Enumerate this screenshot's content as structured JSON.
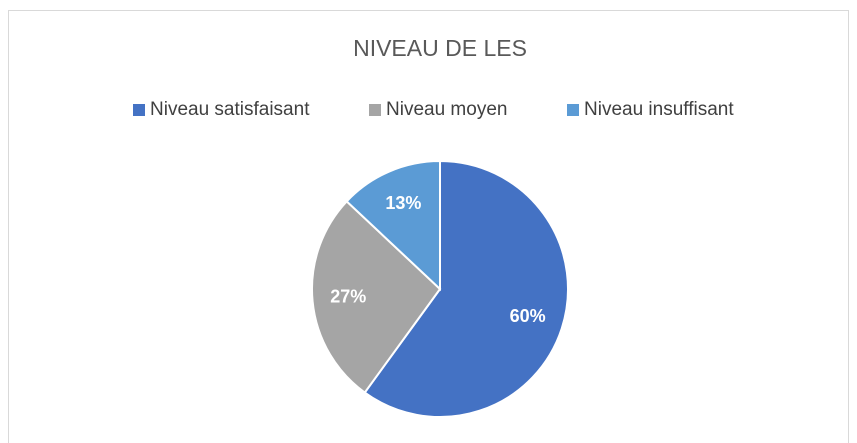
{
  "chart_data": {
    "type": "pie",
    "title": "NIVEAU DE LES",
    "categories": [
      "Niveau satisfaisant",
      "Niveau moyen",
      "Niveau insuffisant"
    ],
    "values": [
      60,
      27,
      13
    ],
    "value_labels": [
      "60%",
      "27%",
      "13%"
    ],
    "colors": [
      "#4472c4",
      "#a5a5a5",
      "#5b9bd5"
    ],
    "legend": "top"
  }
}
